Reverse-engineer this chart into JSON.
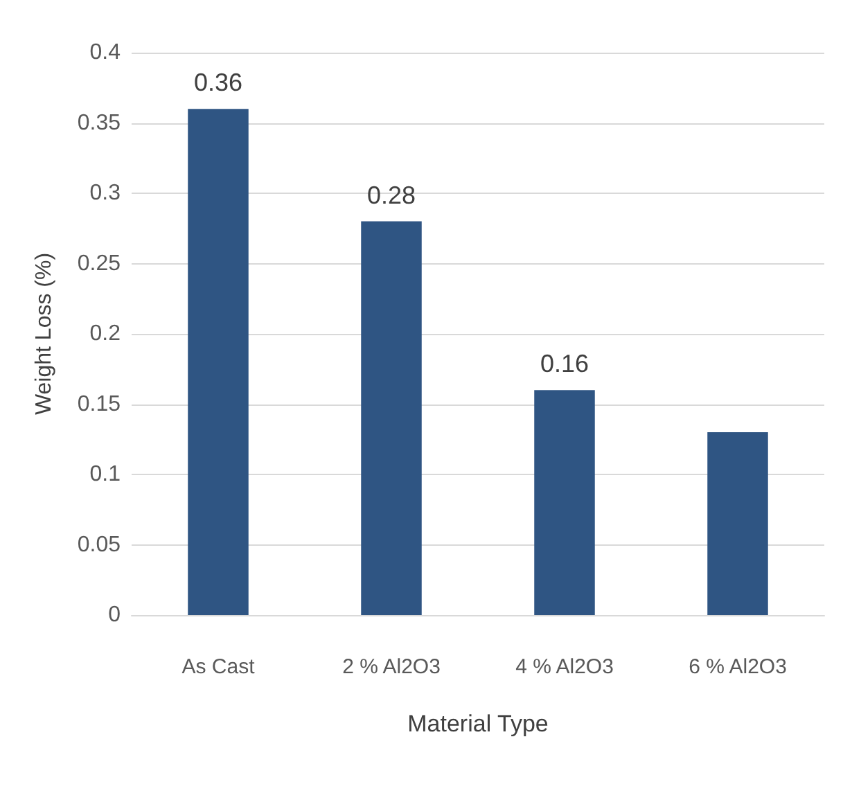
{
  "chart_data": {
    "type": "bar",
    "xlabel": "Material Type",
    "ylabel": "Weight Loss (%)",
    "categories": [
      "As Cast",
      "2 % Al2O3",
      "4 % Al2O3",
      "6 % Al2O3"
    ],
    "values": [
      0.36,
      0.28,
      0.16,
      0.13
    ],
    "value_labels": [
      "0.36",
      "0.28",
      "0.16",
      null
    ],
    "color": "#2f5583",
    "ylim": [
      0,
      0.4
    ],
    "yticks": [
      0,
      0.05,
      0.1,
      0.15,
      0.2,
      0.25,
      0.3,
      0.35,
      0.4
    ],
    "grid": "y"
  }
}
